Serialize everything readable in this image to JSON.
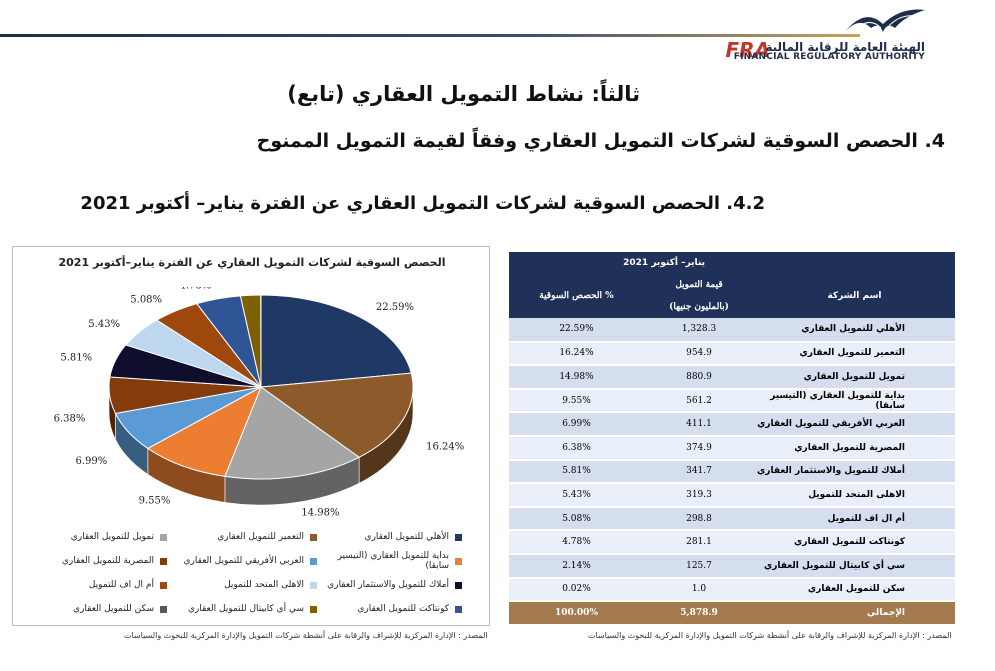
{
  "logo": {
    "arabic_name": "الهيئة العامة للرقابة المالية",
    "english_name": "FINANCIAL REGULATORY AUTHORITY",
    "mark": "FRA"
  },
  "page": {
    "title": "ثالثاً: نشاط التمويل العقاري (تابع)",
    "section": "4. الحصص السوقية لشركات التمويل العقاري وفقاً لقيمة التمويل الممنوح",
    "subsection": "4.2. الحصص السوقية لشركات التمويل العقاري عن الفترة يناير– أكتوبر 2021"
  },
  "chart_data": {
    "type": "pie",
    "title": "الحصص السوقية لشركات التمويل العقاري عن الفترة يناير–أكتوبر 2021",
    "categories": [
      "الأهلي للتمويل العقاري",
      "التعمير للتمويل العقاري",
      "تمويل للتمويل العقاري",
      "بداية للتمويل العقاري (التيسير سابقا)",
      "العربي الأفريقي للتمويل العقاري",
      "المصرية للتمويل العقاري",
      "أملاك للتمويل والاستثمار العقاري",
      "الاهلى المتحد للتمويل",
      "أم ال اف للتمويل",
      "كونتاكت للتمويل العقاري",
      "سي أي كابيتال للتمويل العقاري",
      "سكن للتمويل العقاري"
    ],
    "values": [
      22.59,
      16.24,
      14.98,
      9.55,
      6.99,
      6.38,
      5.81,
      5.43,
      5.08,
      4.78,
      2.14,
      0.02
    ],
    "labels": [
      "22.59%",
      "16.24%",
      "14.98%",
      "9.55%",
      "6.99%",
      "6.38%",
      "5.81%",
      "5.43%",
      "5.08%",
      "4.78%",
      "2.14%",
      "0.02%"
    ],
    "colors": [
      "#1f3864",
      "#8c5a2b",
      "#a5a5a5",
      "#ed7d31",
      "#5b9bd5",
      "#843c0c",
      "#0f0f2d",
      "#bdd7ee",
      "#9e480e",
      "#2f5597",
      "#7f6000",
      "#595959"
    ],
    "legend_position": "bottom"
  },
  "source_chart": "المصدر : الإدارة المركزية للإشراف والرقابة على أنشطة شركات التمويل والإدارة المركزية للبحوث والسياسات",
  "table": {
    "period_header": "يناير– أكتوبر 2021",
    "col_share": "الحصص السوقية %",
    "col_value_line1": "قيمة التمويل",
    "col_value_line2": "(بالمليون جنيها)",
    "col_name": "اسم الشركة",
    "rows": [
      {
        "name": "الأهلي للتمويل العقاري",
        "value": "1,328.3",
        "share": "22.59%"
      },
      {
        "name": "التعمير للتمويل العقاري",
        "value": "954.9",
        "share": "16.24%"
      },
      {
        "name": "تمويل للتمويل العقاري",
        "value": "880.9",
        "share": "14.98%"
      },
      {
        "name": "بداية للتمويل العقاري (التيسير سابقا)",
        "value": "561.2",
        "share": "9.55%"
      },
      {
        "name": "العربي الأفريقي للتمويل العقاري",
        "value": "411.1",
        "share": "6.99%"
      },
      {
        "name": "المصرية للتمويل العقاري",
        "value": "374.9",
        "share": "6.38%"
      },
      {
        "name": "أملاك للتمويل والاستثمار العقاري",
        "value": "341.7",
        "share": "5.81%"
      },
      {
        "name": "الاهلى المتحد للتمويل",
        "value": "319.3",
        "share": "5.43%"
      },
      {
        "name": "أم ال اف للتمويل",
        "value": "298.8",
        "share": "5.08%"
      },
      {
        "name": "كونتاكت للتمويل العقاري",
        "value": "281.1",
        "share": "4.78%"
      },
      {
        "name": "سي أي كابيتال للتمويل العقاري",
        "value": "125.7",
        "share": "2.14%"
      },
      {
        "name": "سكن للتمويل العقاري",
        "value": "1.0",
        "share": "0.02%"
      }
    ],
    "total": {
      "name": "الإجمالي",
      "value": "5,878.9",
      "share": "100.00%"
    }
  },
  "source_table": "المصدر : الإدارة المركزية للإشراف والرقابة على أنشطة شركات التمويل والإدارة المركزية للبحوث والسياسات"
}
